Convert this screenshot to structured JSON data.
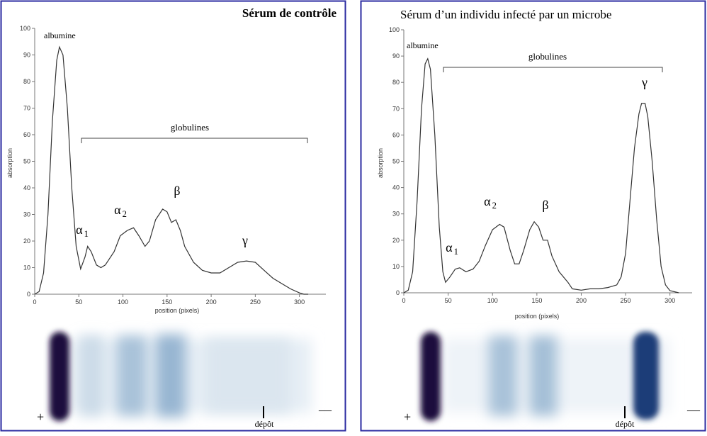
{
  "chart_data": [
    {
      "type": "line",
      "title": "Sérum de contrôle",
      "x_label": "position (pixels)",
      "y_label": "absorption",
      "x": [
        0,
        5,
        10,
        15,
        20,
        25,
        28,
        32,
        37,
        42,
        47,
        52,
        57,
        60,
        64,
        70,
        75,
        80,
        90,
        97,
        105,
        112,
        118,
        125,
        130,
        137,
        145,
        150,
        155,
        160,
        165,
        170,
        180,
        190,
        200,
        210,
        220,
        230,
        240,
        250,
        260,
        270,
        280,
        290,
        300,
        305,
        310
      ],
      "values": [
        0,
        1,
        8,
        30,
        65,
        88,
        93,
        90,
        70,
        40,
        18,
        9.5,
        14,
        18,
        16,
        11,
        10,
        11,
        16,
        22,
        24,
        25,
        22,
        18,
        20,
        28,
        32,
        31,
        27,
        28,
        24,
        18,
        12,
        9,
        8,
        8,
        10,
        12,
        12.5,
        12,
        9,
        6,
        4,
        2,
        0.5,
        0,
        0
      ],
      "color": "#333333",
      "xlim": [
        0,
        330
      ],
      "ylim": [
        0,
        100
      ],
      "xticks": [
        0,
        50,
        100,
        150,
        200,
        250,
        300
      ],
      "yticks": [
        0,
        10,
        20,
        30,
        40,
        50,
        60,
        70,
        80,
        90,
        100
      ],
      "annotations": [
        {
          "text": "albumine"
        },
        {
          "text": "globulines"
        },
        {
          "text": "α",
          "sub": "1"
        },
        {
          "text": "α",
          "sub": "2"
        },
        {
          "text": "β"
        },
        {
          "text": "γ"
        }
      ],
      "gel": {
        "anode": "+",
        "cathode": "—",
        "deposit": "dépôt"
      }
    },
    {
      "type": "line",
      "title": "Sérum d’un individu infecté par un microbe",
      "x_label": "position (pixels)",
      "y_label": "absorption",
      "x": [
        0,
        5,
        10,
        15,
        20,
        24,
        27,
        30,
        35,
        40,
        44,
        47,
        52,
        58,
        63,
        70,
        78,
        85,
        92,
        100,
        108,
        113,
        120,
        125,
        130,
        135,
        142,
        147,
        152,
        157,
        162,
        167,
        175,
        185,
        190,
        200,
        210,
        220,
        230,
        240,
        245,
        250,
        255,
        260,
        265,
        268,
        272,
        275,
        280,
        285,
        290,
        295,
        300,
        310
      ],
      "values": [
        0,
        1,
        8,
        35,
        70,
        87,
        89,
        85,
        60,
        25,
        8,
        4,
        6,
        9,
        9.5,
        8,
        9,
        12,
        18,
        24,
        26,
        25,
        16,
        11,
        11,
        16,
        24,
        27,
        25,
        20,
        20,
        14,
        8,
        4,
        1.5,
        1,
        1.5,
        1.5,
        2,
        3,
        6,
        15,
        35,
        55,
        68,
        72,
        72,
        67,
        50,
        28,
        10,
        3,
        0.8,
        0
      ],
      "color": "#333333",
      "xlim": [
        0,
        325
      ],
      "ylim": [
        0,
        100
      ],
      "xticks": [
        0,
        50,
        100,
        150,
        200,
        250,
        300
      ],
      "yticks": [
        0,
        10,
        20,
        30,
        40,
        50,
        60,
        70,
        80,
        90,
        100
      ],
      "annotations": [
        {
          "text": "albumine"
        },
        {
          "text": "globulines"
        },
        {
          "text": "α",
          "sub": "1"
        },
        {
          "text": "α",
          "sub": "2"
        },
        {
          "text": "β"
        },
        {
          "text": "γ"
        }
      ],
      "gel": {
        "anode": "+",
        "cathode": "—",
        "deposit": "dépôt"
      }
    }
  ]
}
